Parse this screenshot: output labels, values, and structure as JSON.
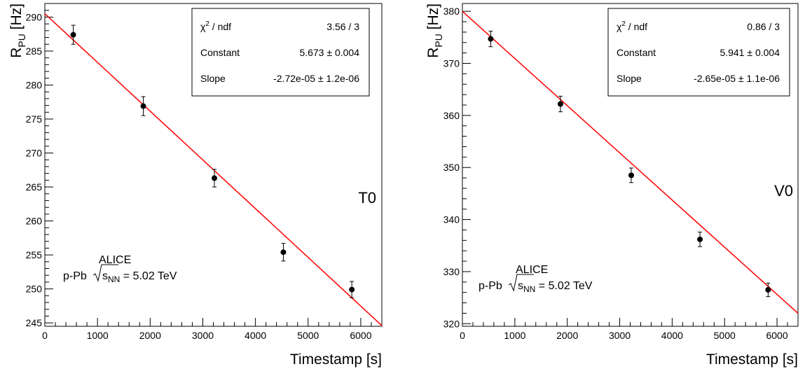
{
  "chart_data": [
    {
      "type": "scatter",
      "x": [
        540,
        1870,
        3220,
        4530,
        5830
      ],
      "y": [
        287.4,
        276.9,
        266.3,
        255.4,
        249.9
      ],
      "yerr": [
        1.4,
        1.4,
        1.3,
        1.3,
        1.2
      ],
      "xlim": [
        0,
        6400
      ],
      "ylim": [
        244.5,
        292
      ],
      "x_ticks": [
        0,
        1000,
        2000,
        3000,
        4000,
        5000,
        6000
      ],
      "y_ticks": [
        245,
        250,
        255,
        260,
        265,
        270,
        275,
        280,
        285,
        290
      ],
      "fit": {
        "x": [
          0,
          6400
        ],
        "y": [
          290.5,
          244.6
        ],
        "color": "#ff0000"
      },
      "xlabel": "Timestamp [s]",
      "ylabel": "R",
      "ylabel_sub": "PU",
      "ylabel_unit": " [Hz]",
      "detector_label": "T0",
      "alice_label": "ALICE",
      "system_label": "p-Pb",
      "energy_label": " = 5.02 TeV",
      "sqrt_s": "s",
      "sqrt_sub": "NN",
      "stats": {
        "chi_symbol": "χ",
        "chi_sup": "2",
        "chi_rest": " / ndf",
        "chi_value": "3.56 / 3",
        "constant_label": "Constant",
        "constant_value": "5.673",
        "constant_err": "0.004",
        "slope_label": "Slope",
        "slope_value": "-2.72e-05",
        "slope_err": "1.2e-06",
        "pm": "±"
      }
    },
    {
      "type": "scatter",
      "x": [
        540,
        1870,
        3220,
        4530,
        5830
      ],
      "y": [
        374.7,
        362.2,
        348.5,
        336.2,
        326.5
      ],
      "yerr": [
        1.5,
        1.5,
        1.4,
        1.4,
        1.3
      ],
      "xlim": [
        0,
        6400
      ],
      "ylim": [
        319.5,
        381.5
      ],
      "x_ticks": [
        0,
        1000,
        2000,
        3000,
        4000,
        5000,
        6000
      ],
      "y_ticks": [
        320,
        330,
        340,
        350,
        360,
        370,
        380
      ],
      "fit": {
        "x": [
          0,
          6400
        ],
        "y": [
          380,
          322
        ],
        "color": "#ff0000"
      },
      "xlabel": "Timestamp [s]",
      "ylabel": "R",
      "ylabel_sub": "PU",
      "ylabel_unit": " [Hz]",
      "detector_label": "V0",
      "alice_label": "ALICE",
      "system_label": "p-Pb",
      "energy_label": " = 5.02 TeV",
      "sqrt_s": "s",
      "sqrt_sub": "NN",
      "stats": {
        "chi_symbol": "χ",
        "chi_sup": "2",
        "chi_rest": " / ndf",
        "chi_value": "0.86 / 3",
        "constant_label": "Constant",
        "constant_value": "5.941",
        "constant_err": "0.004",
        "slope_label": "Slope",
        "slope_value": "-2.65e-05",
        "slope_err": "1.1e-06",
        "pm": "±"
      }
    }
  ]
}
